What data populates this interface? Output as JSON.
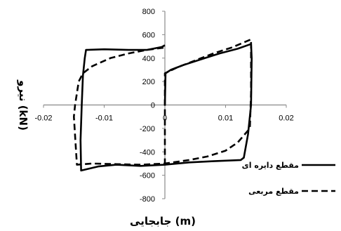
{
  "chart_data": {
    "type": "line",
    "xlabel": "جابجایی (m)",
    "ylabel": "نیرو (kN)",
    "xlim": [
      -0.02,
      0.02
    ],
    "ylim": [
      -800,
      800
    ],
    "x_ticks": [
      "-0.02",
      "-0.01",
      "0",
      "0.01",
      "0.02"
    ],
    "y_ticks": [
      "-800",
      "-600",
      "-400",
      "-200",
      "0",
      "200",
      "400",
      "600",
      "800"
    ],
    "grid": false,
    "legend_position": "bottom-right",
    "series": [
      {
        "name": "مقطع دایره ای",
        "style": "solid",
        "color": "#000000",
        "points": [
          [
            0.0,
            0
          ],
          [
            0.0001,
            270
          ],
          [
            0.001,
            300
          ],
          [
            0.003,
            340
          ],
          [
            0.006,
            390
          ],
          [
            0.009,
            440
          ],
          [
            0.012,
            480
          ],
          [
            0.0142,
            520
          ],
          [
            0.0143,
            400
          ],
          [
            0.0142,
            0
          ],
          [
            0.0137,
            -250
          ],
          [
            0.013,
            -450
          ],
          [
            0.0125,
            -470
          ],
          [
            0.008,
            -480
          ],
          [
            0.004,
            -490
          ],
          [
            0.0,
            -510
          ],
          [
            -0.004,
            -520
          ],
          [
            -0.008,
            -510
          ],
          [
            -0.011,
            -525
          ],
          [
            -0.0138,
            -560
          ],
          [
            -0.0139,
            -300
          ],
          [
            -0.0137,
            0
          ],
          [
            -0.0135,
            250
          ],
          [
            -0.0132,
            400
          ],
          [
            -0.013,
            470
          ],
          [
            -0.01,
            475
          ],
          [
            -0.006,
            470
          ],
          [
            -0.003,
            470
          ],
          [
            -0.0005,
            495
          ],
          [
            0.0,
            510
          ]
        ]
      },
      {
        "name": "مقطع مربعی",
        "style": "dashed",
        "color": "#000000",
        "points": [
          [
            0.0,
            -510
          ],
          [
            0.0,
            270
          ],
          [
            0.002,
            320
          ],
          [
            0.005,
            380
          ],
          [
            0.008,
            440
          ],
          [
            0.011,
            490
          ],
          [
            0.0142,
            560
          ],
          [
            0.0142,
            100
          ],
          [
            0.014,
            -200
          ],
          [
            0.012,
            -320
          ],
          [
            0.01,
            -390
          ],
          [
            0.007,
            -440
          ],
          [
            0.004,
            -470
          ],
          [
            0.0,
            -500
          ],
          [
            -0.004,
            -510
          ],
          [
            -0.008,
            -505
          ],
          [
            -0.012,
            -500
          ],
          [
            -0.0145,
            -510
          ],
          [
            -0.015,
            -100
          ],
          [
            -0.0148,
            0
          ],
          [
            -0.0142,
            200
          ],
          [
            -0.0135,
            270
          ],
          [
            -0.012,
            330
          ],
          [
            -0.009,
            400
          ],
          [
            -0.006,
            440
          ],
          [
            -0.003,
            470
          ],
          [
            0.0,
            490
          ]
        ]
      }
    ]
  }
}
